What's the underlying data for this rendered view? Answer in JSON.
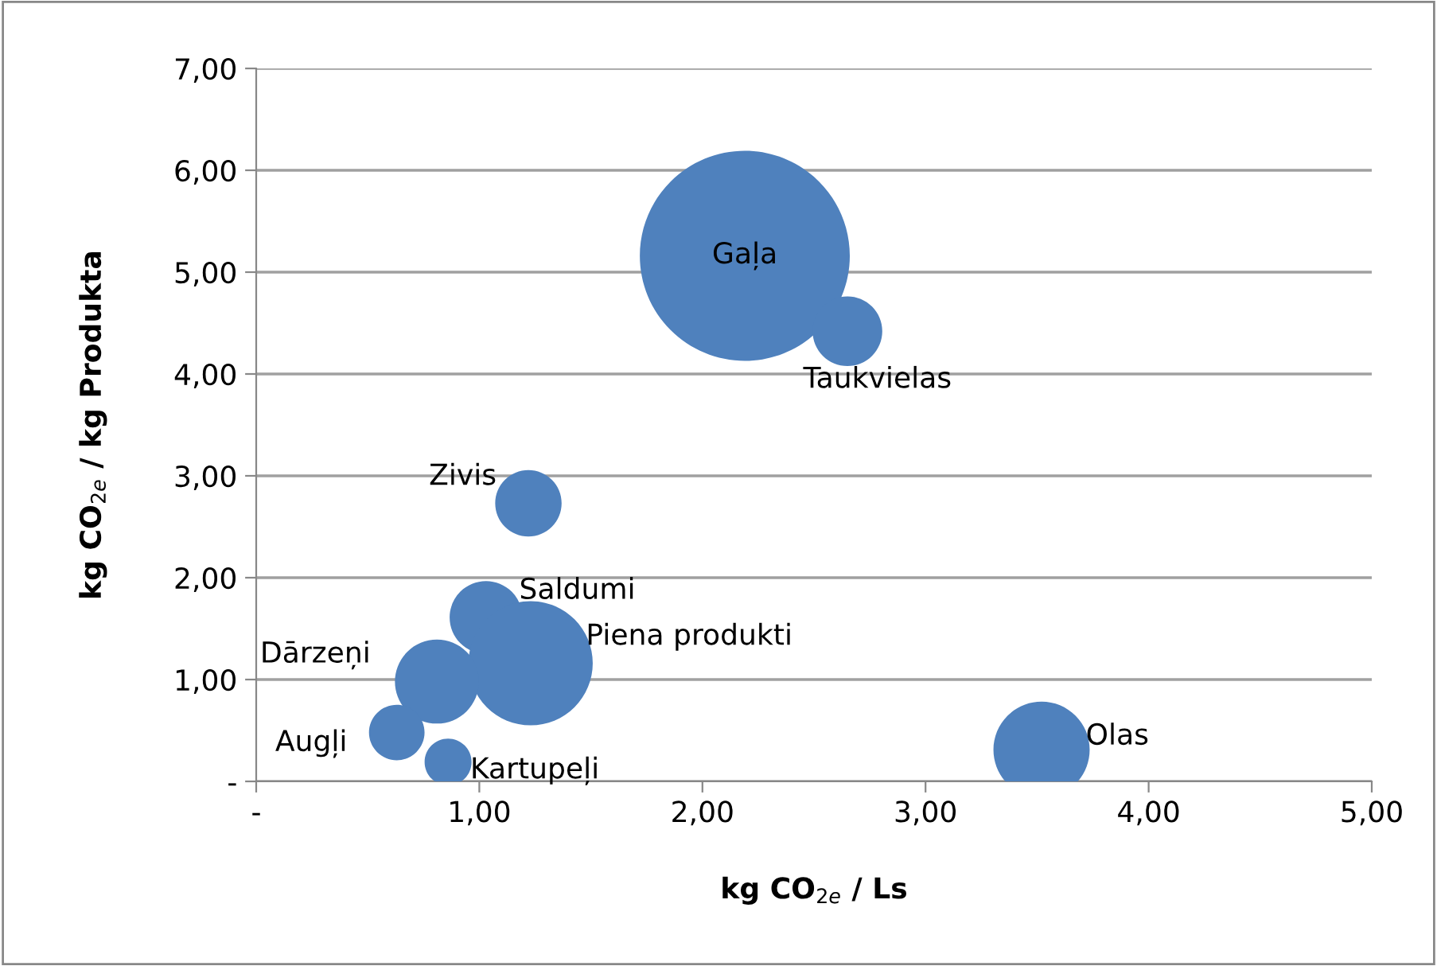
{
  "chart_data": {
    "type": "bubble",
    "xlabel": "kg CO$_{2e}$ / Ls",
    "ylabel": "kg CO$_{2e}$ / kg Produkta",
    "x": [
      2.19,
      2.65,
      1.22,
      1.03,
      1.23,
      0.81,
      0.63,
      0.86,
      3.52
    ],
    "series": [
      {
        "color": "#4f81bd",
        "values": [
          5.16,
          4.42,
          2.73,
          1.61,
          1.16,
          0.98,
          0.48,
          0.19,
          0.31
        ],
        "sizes": [
          1,
          0.11,
          0.1,
          0.12,
          0.35,
          0.16,
          0.07,
          0.05,
          0.21
        ]
      }
    ],
    "annotations": [
      {
        "text": "Gaļa",
        "x": 2.19,
        "y": 5.16
      },
      {
        "text": "Taukvielas",
        "x": 2.65,
        "y": 4.42
      },
      {
        "text": "Zivis",
        "x": 1.22,
        "y": 2.73
      },
      {
        "text": "Saldumi",
        "x": 1.03,
        "y": 1.61
      },
      {
        "text": "Piena produkti",
        "x": 1.23,
        "y": 1.16
      },
      {
        "text": "Dārzeņi",
        "x": 0.81,
        "y": 0.98
      },
      {
        "text": "Augļi",
        "x": 0.63,
        "y": 0.48
      },
      {
        "text": "Kartupeļi",
        "x": 0.86,
        "y": 0.19
      },
      {
        "text": "Olas",
        "x": 3.52,
        "y": 0.31
      }
    ],
    "xlim": [
      0,
      5
    ],
    "ylim": [
      0,
      7
    ],
    "xticks": [
      {
        "value": 0,
        "label": "-"
      },
      {
        "value": 1,
        "label": "1,00"
      },
      {
        "value": 2,
        "label": "2,00"
      },
      {
        "value": 3,
        "label": "3,00"
      },
      {
        "value": 4,
        "label": "4,00"
      },
      {
        "value": 5,
        "label": "5,00"
      }
    ],
    "yticks": [
      {
        "value": 0,
        "label": "-"
      },
      {
        "value": 1,
        "label": "1,00"
      },
      {
        "value": 2,
        "label": "2,00"
      },
      {
        "value": 3,
        "label": "3,00"
      },
      {
        "value": 4,
        "label": "4,00"
      },
      {
        "value": 5,
        "label": "5,00"
      },
      {
        "value": 6,
        "label": "6,00"
      },
      {
        "value": 7,
        "label": "7,00"
      }
    ],
    "grid": "y",
    "legend": false
  }
}
